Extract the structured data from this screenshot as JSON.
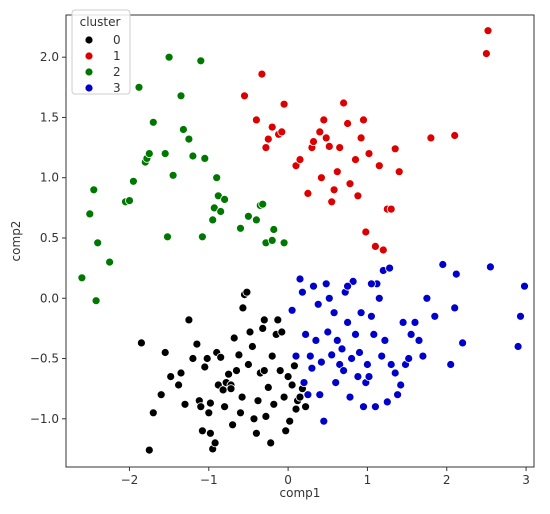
{
  "chart_data": {
    "type": "scatter",
    "title": "",
    "xlabel": "comp1",
    "ylabel": "comp2",
    "xlim": [
      -2.8,
      3.1
    ],
    "ylim": [
      -1.4,
      2.35
    ],
    "x_ticks": [
      -2,
      -1,
      0,
      1,
      2,
      3
    ],
    "y_ticks": [
      -1.0,
      -0.5,
      0.0,
      0.5,
      1.0,
      1.5,
      2.0
    ],
    "grid": false,
    "legend": {
      "title": "cluster",
      "placement": "top-left"
    },
    "marker_edge_color": "#ffffff",
    "series": [
      {
        "name": "0",
        "color": "#000000",
        "points": [
          [
            -1.85,
            -0.37
          ],
          [
            -1.75,
            -1.26
          ],
          [
            -1.7,
            -0.95
          ],
          [
            -1.6,
            -0.8
          ],
          [
            -1.55,
            -0.45
          ],
          [
            -1.48,
            -0.65
          ],
          [
            -1.38,
            -0.72
          ],
          [
            -1.35,
            -0.62
          ],
          [
            -1.3,
            -0.88
          ],
          [
            -1.25,
            -0.18
          ],
          [
            -1.2,
            -0.5
          ],
          [
            -1.15,
            -0.38
          ],
          [
            -1.12,
            -0.85
          ],
          [
            -1.1,
            -0.9
          ],
          [
            -1.08,
            -1.1
          ],
          [
            -1.05,
            -0.57
          ],
          [
            -1.02,
            -0.5
          ],
          [
            -1.0,
            -0.95
          ],
          [
            -0.98,
            -1.12
          ],
          [
            -0.95,
            -1.25
          ],
          [
            -0.92,
            -1.2
          ],
          [
            -0.9,
            -0.45
          ],
          [
            -0.88,
            -0.72
          ],
          [
            -0.85,
            -0.49
          ],
          [
            -0.82,
            -0.76
          ],
          [
            -0.8,
            -0.9
          ],
          [
            -0.78,
            -0.7
          ],
          [
            -0.75,
            -0.63
          ],
          [
            -0.72,
            -0.72
          ],
          [
            -0.7,
            -1.05
          ],
          [
            -0.68,
            -0.33
          ],
          [
            -0.65,
            -0.6
          ],
          [
            -0.62,
            -0.47
          ],
          [
            -0.6,
            -0.95
          ],
          [
            -0.58,
            -0.82
          ],
          [
            -0.57,
            -0.08
          ],
          [
            -0.55,
            0.03
          ],
          [
            -0.52,
            0.05
          ],
          [
            -0.5,
            -0.55
          ],
          [
            -0.48,
            -0.28
          ],
          [
            -0.45,
            -0.4
          ],
          [
            -0.43,
            -1.0
          ],
          [
            -0.4,
            -1.12
          ],
          [
            -0.38,
            -0.85
          ],
          [
            -0.35,
            -0.62
          ],
          [
            -0.32,
            -0.25
          ],
          [
            -0.3,
            -0.6
          ],
          [
            -0.28,
            -0.98
          ],
          [
            -0.25,
            -0.74
          ],
          [
            -0.22,
            -1.2
          ],
          [
            -0.2,
            -0.48
          ],
          [
            -0.18,
            -0.88
          ],
          [
            -0.15,
            -0.3
          ],
          [
            -0.13,
            -0.18
          ],
          [
            -0.1,
            -0.6
          ],
          [
            -0.08,
            -0.28
          ],
          [
            -0.05,
            -0.82
          ],
          [
            -0.03,
            -1.1
          ],
          [
            0.0,
            -0.65
          ],
          [
            0.02,
            -1.02
          ],
          [
            0.05,
            -0.72
          ],
          [
            0.08,
            -0.56
          ],
          [
            0.1,
            -0.92
          ],
          [
            0.12,
            -0.85
          ],
          [
            0.15,
            -0.82
          ],
          [
            0.18,
            -0.75
          ],
          [
            0.22,
            -0.9
          ],
          [
            -0.3,
            -0.18
          ],
          [
            -0.72,
            -0.75
          ],
          [
            -0.98,
            -0.87
          ]
        ]
      },
      {
        "name": "1",
        "color": "#dd0000",
        "points": [
          [
            -0.55,
            1.68
          ],
          [
            -0.4,
            1.48
          ],
          [
            -0.33,
            1.86
          ],
          [
            -0.28,
            1.25
          ],
          [
            -0.25,
            1.32
          ],
          [
            -0.2,
            1.42
          ],
          [
            -0.12,
            1.36
          ],
          [
            -0.08,
            1.38
          ],
          [
            -0.05,
            1.61
          ],
          [
            0.1,
            1.1
          ],
          [
            0.15,
            1.15
          ],
          [
            0.25,
            0.87
          ],
          [
            0.3,
            1.25
          ],
          [
            0.32,
            1.3
          ],
          [
            0.4,
            1.38
          ],
          [
            0.42,
            1.0
          ],
          [
            0.45,
            1.48
          ],
          [
            0.48,
            1.33
          ],
          [
            0.52,
            1.26
          ],
          [
            0.55,
            0.8
          ],
          [
            0.58,
            0.9
          ],
          [
            0.62,
            1.05
          ],
          [
            0.65,
            1.25
          ],
          [
            0.7,
            1.62
          ],
          [
            0.75,
            1.45
          ],
          [
            0.78,
            0.95
          ],
          [
            0.85,
            1.15
          ],
          [
            0.88,
            0.85
          ],
          [
            0.92,
            1.33
          ],
          [
            0.95,
            1.48
          ],
          [
            0.98,
            0.55
          ],
          [
            1.02,
            1.2
          ],
          [
            1.1,
            0.43
          ],
          [
            1.15,
            1.1
          ],
          [
            1.2,
            0.4
          ],
          [
            1.25,
            0.74
          ],
          [
            1.3,
            0.74
          ],
          [
            1.35,
            1.24
          ],
          [
            1.4,
            1.05
          ],
          [
            1.8,
            1.33
          ],
          [
            2.1,
            1.35
          ],
          [
            2.5,
            2.03
          ],
          [
            2.52,
            2.22
          ]
        ]
      },
      {
        "name": "2",
        "color": "#007700",
        "points": [
          [
            -2.6,
            0.17
          ],
          [
            -2.5,
            0.7
          ],
          [
            -2.45,
            0.9
          ],
          [
            -2.42,
            -0.02
          ],
          [
            -2.4,
            0.46
          ],
          [
            -2.25,
            0.3
          ],
          [
            -2.05,
            0.8
          ],
          [
            -2.0,
            0.81
          ],
          [
            -1.95,
            0.97
          ],
          [
            -1.88,
            1.75
          ],
          [
            -1.8,
            1.13
          ],
          [
            -1.78,
            1.16
          ],
          [
            -1.75,
            1.2
          ],
          [
            -1.7,
            1.46
          ],
          [
            -1.55,
            1.2
          ],
          [
            -1.52,
            0.51
          ],
          [
            -1.5,
            2.0
          ],
          [
            -1.45,
            1.02
          ],
          [
            -1.35,
            1.68
          ],
          [
            -1.32,
            1.4
          ],
          [
            -1.25,
            1.32
          ],
          [
            -1.2,
            1.18
          ],
          [
            -1.1,
            1.97
          ],
          [
            -1.08,
            0.51
          ],
          [
            -1.05,
            1.16
          ],
          [
            -0.95,
            0.65
          ],
          [
            -0.93,
            0.75
          ],
          [
            -0.9,
            1.0
          ],
          [
            -0.88,
            0.85
          ],
          [
            -0.85,
            0.72
          ],
          [
            -0.8,
            0.82
          ],
          [
            -0.6,
            0.58
          ],
          [
            -0.5,
            0.68
          ],
          [
            -0.4,
            0.65
          ],
          [
            -0.35,
            0.77
          ],
          [
            -0.32,
            0.78
          ],
          [
            -0.28,
            0.46
          ],
          [
            -0.2,
            0.48
          ],
          [
            -0.18,
            0.57
          ],
          [
            -0.05,
            0.46
          ]
        ]
      },
      {
        "name": "3",
        "color": "#0000cc",
        "points": [
          [
            0.05,
            -0.1
          ],
          [
            0.1,
            -0.48
          ],
          [
            0.15,
            0.16
          ],
          [
            0.18,
            0.05
          ],
          [
            0.2,
            -0.7
          ],
          [
            0.22,
            -0.3
          ],
          [
            0.25,
            -0.8
          ],
          [
            0.28,
            -0.48
          ],
          [
            0.3,
            -0.58
          ],
          [
            0.32,
            0.1
          ],
          [
            0.35,
            -0.35
          ],
          [
            0.38,
            -0.05
          ],
          [
            0.4,
            -0.8
          ],
          [
            0.42,
            -0.53
          ],
          [
            0.45,
            -1.02
          ],
          [
            0.48,
            0.12
          ],
          [
            0.5,
            -0.28
          ],
          [
            0.52,
            0.0
          ],
          [
            0.55,
            -0.47
          ],
          [
            0.58,
            -0.12
          ],
          [
            0.6,
            -0.7
          ],
          [
            0.62,
            -0.35
          ],
          [
            0.65,
            -0.55
          ],
          [
            0.68,
            -0.42
          ],
          [
            0.7,
            -0.6
          ],
          [
            0.72,
            0.05
          ],
          [
            0.75,
            -0.2
          ],
          [
            0.78,
            -0.82
          ],
          [
            0.8,
            -0.5
          ],
          [
            0.82,
            0.14
          ],
          [
            0.85,
            -0.3
          ],
          [
            0.88,
            -0.65
          ],
          [
            0.9,
            -0.45
          ],
          [
            0.92,
            -0.12
          ],
          [
            0.95,
            -0.9
          ],
          [
            0.98,
            -0.7
          ],
          [
            1.0,
            -0.55
          ],
          [
            1.02,
            -0.65
          ],
          [
            1.05,
            -0.15
          ],
          [
            1.08,
            -0.3
          ],
          [
            1.1,
            -0.9
          ],
          [
            1.12,
            0.12
          ],
          [
            1.15,
            0.0
          ],
          [
            1.18,
            -0.48
          ],
          [
            1.2,
            0.23
          ],
          [
            1.22,
            -0.35
          ],
          [
            1.25,
            -0.86
          ],
          [
            1.28,
            0.25
          ],
          [
            1.3,
            -0.55
          ],
          [
            1.35,
            -0.62
          ],
          [
            1.38,
            -0.8
          ],
          [
            1.42,
            -0.72
          ],
          [
            1.45,
            -0.2
          ],
          [
            1.48,
            -0.55
          ],
          [
            1.52,
            -0.5
          ],
          [
            1.55,
            -0.3
          ],
          [
            1.6,
            -0.2
          ],
          [
            1.65,
            -0.35
          ],
          [
            1.7,
            -0.48
          ],
          [
            1.75,
            0.0
          ],
          [
            1.85,
            -0.15
          ],
          [
            1.95,
            0.28
          ],
          [
            2.05,
            -0.55
          ],
          [
            2.1,
            -0.08
          ],
          [
            2.12,
            0.2
          ],
          [
            2.2,
            -0.37
          ],
          [
            2.55,
            0.26
          ],
          [
            2.9,
            -0.4
          ],
          [
            2.93,
            -0.15
          ],
          [
            2.98,
            0.1
          ],
          [
            0.75,
            0.1
          ],
          [
            1.05,
            0.12
          ]
        ]
      }
    ]
  }
}
